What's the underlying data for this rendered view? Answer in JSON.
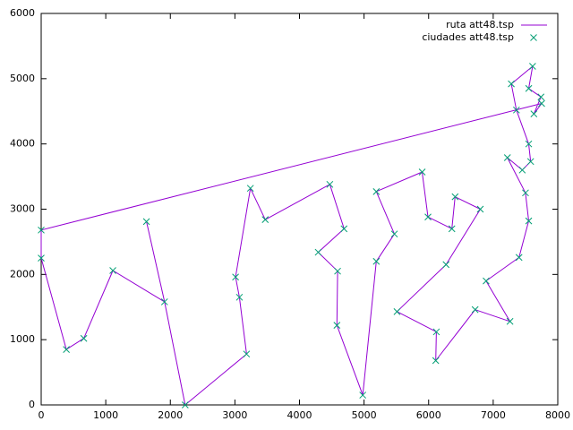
{
  "chart_data": {
    "type": "line",
    "title": "",
    "xlabel": "",
    "ylabel": "",
    "xlim": [
      0,
      8000
    ],
    "ylim": [
      0,
      6000
    ],
    "x_ticks": [
      "0",
      "1000",
      "2000",
      "3000",
      "4000",
      "5000",
      "6000",
      "7000",
      "8000"
    ],
    "y_ticks": [
      "0",
      "1000",
      "2000",
      "3000",
      "4000",
      "5000",
      "6000"
    ],
    "grid": false,
    "legend_position": "top-right",
    "series": [
      {
        "name": "ruta att48.tsp",
        "style": "line",
        "color": "#9400d3",
        "points": [
          [
            0,
            2680
          ],
          [
            0,
            2250
          ],
          [
            390,
            850
          ],
          [
            660,
            1020
          ],
          [
            1110,
            2060
          ],
          [
            1910,
            1580
          ],
          [
            1630,
            2810
          ],
          [
            1910,
            1580
          ],
          [
            2230,
            0
          ],
          [
            3180,
            780
          ],
          [
            3070,
            1650
          ],
          [
            3010,
            1960
          ],
          [
            3240,
            3320
          ],
          [
            3470,
            2840
          ],
          [
            4470,
            3380
          ],
          [
            4690,
            2700
          ],
          [
            4290,
            2340
          ],
          [
            4590,
            2050
          ],
          [
            4580,
            1220
          ],
          [
            4980,
            150
          ],
          [
            4980,
            150
          ],
          [
            5190,
            2200
          ],
          [
            5470,
            2620
          ],
          [
            5190,
            3270
          ],
          [
            5900,
            3570
          ],
          [
            5990,
            2880
          ],
          [
            6360,
            2700
          ],
          [
            6410,
            3190
          ],
          [
            6800,
            3000
          ],
          [
            6270,
            2150
          ],
          [
            5510,
            1430
          ],
          [
            6120,
            1120
          ],
          [
            6110,
            680
          ],
          [
            6720,
            1460
          ],
          [
            7260,
            1280
          ],
          [
            6890,
            1900
          ],
          [
            7400,
            2260
          ],
          [
            7550,
            2820
          ],
          [
            7500,
            3250
          ],
          [
            7220,
            3790
          ],
          [
            7450,
            3600
          ],
          [
            7580,
            3730
          ],
          [
            7550,
            4000
          ],
          [
            7360,
            4520
          ],
          [
            7280,
            4920
          ],
          [
            7610,
            5190
          ],
          [
            7550,
            4850
          ],
          [
            7740,
            4720
          ],
          [
            7630,
            4460
          ],
          [
            7750,
            4620
          ],
          [
            0,
            2680
          ]
        ]
      },
      {
        "name": "ciudades att48.tsp",
        "style": "points",
        "color": "#009e73",
        "points": [
          [
            0,
            2680
          ],
          [
            0,
            2250
          ],
          [
            390,
            850
          ],
          [
            660,
            1020
          ],
          [
            1110,
            2060
          ],
          [
            1910,
            1580
          ],
          [
            1630,
            2810
          ],
          [
            2230,
            0
          ],
          [
            3180,
            780
          ],
          [
            3070,
            1650
          ],
          [
            3010,
            1960
          ],
          [
            3240,
            3320
          ],
          [
            3470,
            2840
          ],
          [
            4470,
            3380
          ],
          [
            4690,
            2700
          ],
          [
            4290,
            2340
          ],
          [
            4590,
            2050
          ],
          [
            4580,
            1220
          ],
          [
            4980,
            150
          ],
          [
            5190,
            2200
          ],
          [
            5470,
            2620
          ],
          [
            5190,
            3270
          ],
          [
            5900,
            3570
          ],
          [
            5990,
            2880
          ],
          [
            6360,
            2700
          ],
          [
            6410,
            3190
          ],
          [
            6800,
            3000
          ],
          [
            6270,
            2150
          ],
          [
            5510,
            1430
          ],
          [
            6120,
            1120
          ],
          [
            6110,
            680
          ],
          [
            6720,
            1460
          ],
          [
            7260,
            1280
          ],
          [
            6890,
            1900
          ],
          [
            7400,
            2260
          ],
          [
            7550,
            2820
          ],
          [
            7500,
            3250
          ],
          [
            7220,
            3790
          ],
          [
            7450,
            3600
          ],
          [
            7580,
            3730
          ],
          [
            7550,
            4000
          ],
          [
            7360,
            4520
          ],
          [
            7280,
            4920
          ],
          [
            7610,
            5190
          ],
          [
            7550,
            4850
          ],
          [
            7740,
            4720
          ],
          [
            7630,
            4460
          ],
          [
            7750,
            4620
          ]
        ]
      }
    ]
  }
}
